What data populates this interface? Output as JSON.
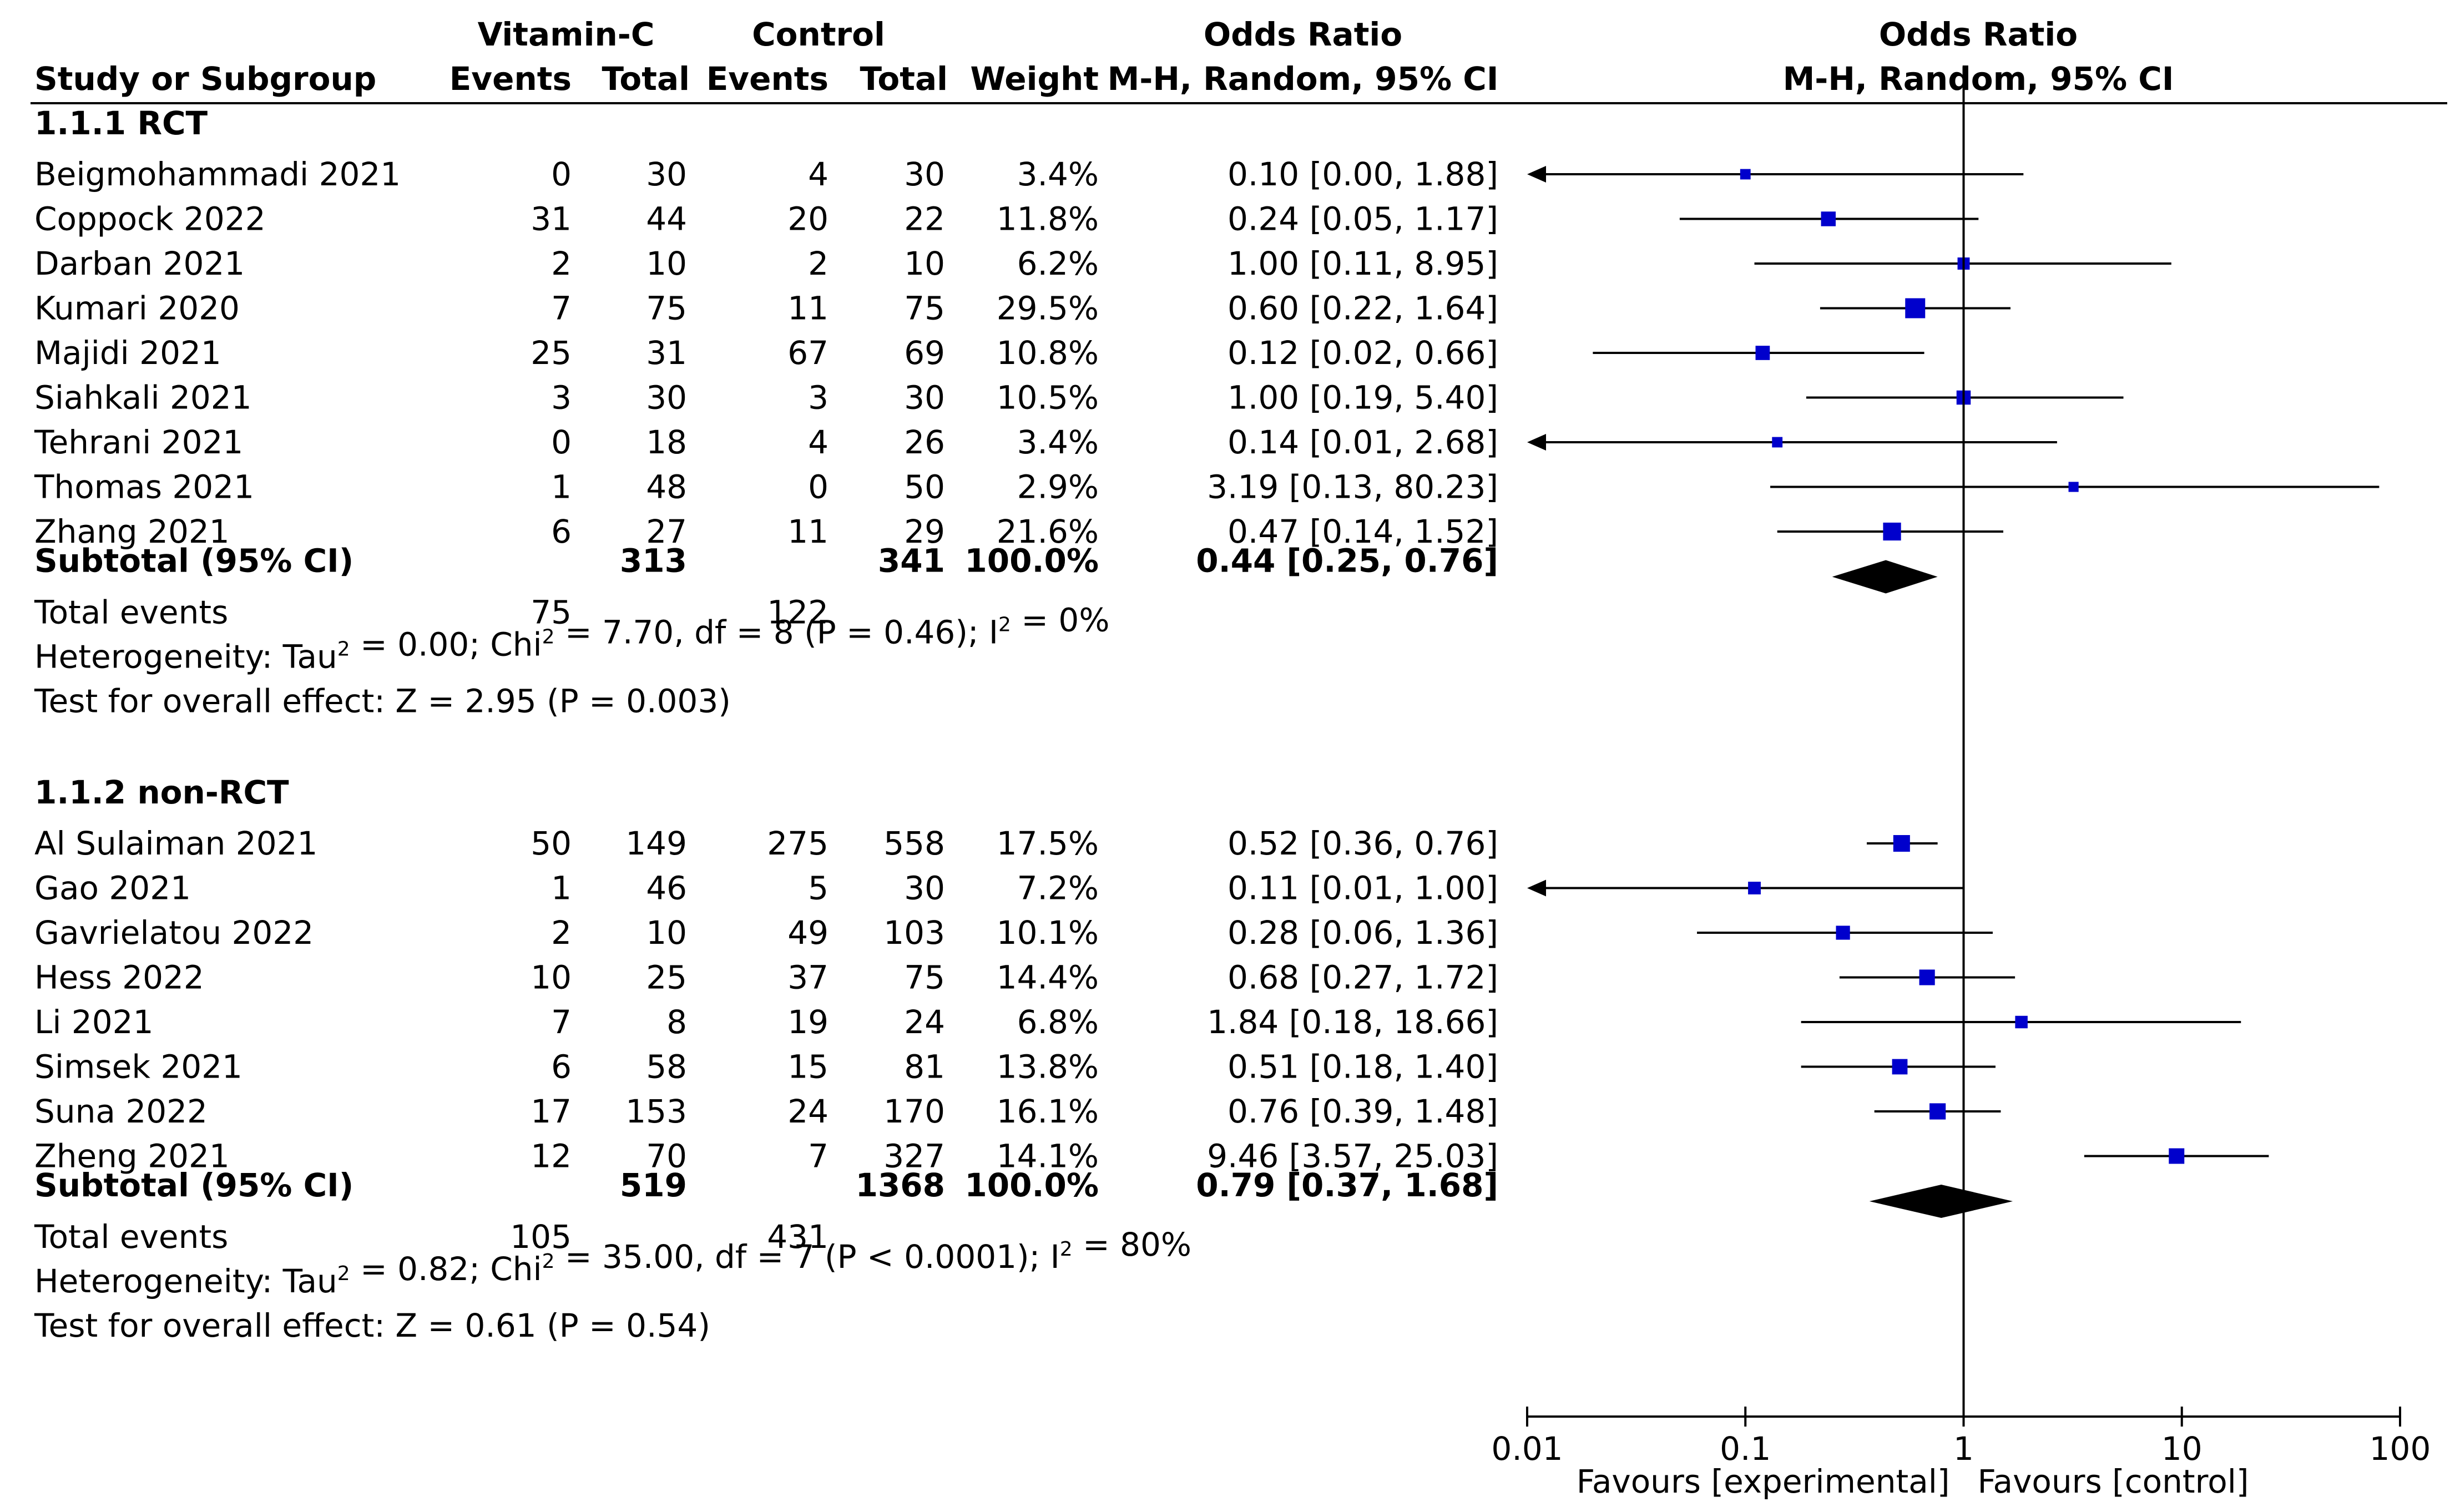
{
  "chart_data": {
    "type": "forest",
    "title": "Odds Ratio",
    "plot_header": [
      "Odds Ratio",
      "M-H, Random, 95% CI"
    ],
    "column_headers": {
      "study": "Study or Subgroup",
      "vitc_group": "Vitamin-C",
      "control_group": "Control",
      "events": "Events",
      "total": "Total",
      "weight": "Weight",
      "or_title": "Odds Ratio",
      "or_method": "M-H, Random, 95% CI"
    },
    "x_axis": {
      "scale": "log",
      "range": [
        0.01,
        100
      ],
      "ticks": [
        0.01,
        0.1,
        1,
        10,
        100
      ],
      "tick_labels": [
        "0.01",
        "0.1",
        "1",
        "10",
        "100"
      ],
      "left_label": "Favours [experimental]",
      "right_label": "Favours [control]"
    },
    "subgroups": [
      {
        "name": "1.1.1 RCT",
        "studies": [
          {
            "name": "Beigmohammadi 2021",
            "e1": "0",
            "t1": "30",
            "e2": "4",
            "t2": "30",
            "weight": "3.4%",
            "ci_text": "0.10 [0.00, 1.88]",
            "or": 0.1,
            "lo": 0.0,
            "hi": 1.88,
            "w": 3.4
          },
          {
            "name": "Coppock 2022",
            "e1": "31",
            "t1": "44",
            "e2": "20",
            "t2": "22",
            "weight": "11.8%",
            "ci_text": "0.24 [0.05, 1.17]",
            "or": 0.24,
            "lo": 0.05,
            "hi": 1.17,
            "w": 11.8
          },
          {
            "name": "Darban 2021",
            "e1": "2",
            "t1": "10",
            "e2": "2",
            "t2": "10",
            "weight": "6.2%",
            "ci_text": "1.00 [0.11, 8.95]",
            "or": 1.0,
            "lo": 0.11,
            "hi": 8.95,
            "w": 6.2
          },
          {
            "name": "Kumari 2020",
            "e1": "7",
            "t1": "75",
            "e2": "11",
            "t2": "75",
            "weight": "29.5%",
            "ci_text": "0.60 [0.22, 1.64]",
            "or": 0.6,
            "lo": 0.22,
            "hi": 1.64,
            "w": 29.5
          },
          {
            "name": "Majidi 2021",
            "e1": "25",
            "t1": "31",
            "e2": "67",
            "t2": "69",
            "weight": "10.8%",
            "ci_text": "0.12 [0.02, 0.66]",
            "or": 0.12,
            "lo": 0.02,
            "hi": 0.66,
            "w": 10.8
          },
          {
            "name": "Siahkali 2021",
            "e1": "3",
            "t1": "30",
            "e2": "3",
            "t2": "30",
            "weight": "10.5%",
            "ci_text": "1.00 [0.19, 5.40]",
            "or": 1.0,
            "lo": 0.19,
            "hi": 5.4,
            "w": 10.5
          },
          {
            "name": "Tehrani 2021",
            "e1": "0",
            "t1": "18",
            "e2": "4",
            "t2": "26",
            "weight": "3.4%",
            "ci_text": "0.14 [0.01, 2.68]",
            "or": 0.14,
            "lo": 0.01,
            "hi": 2.68,
            "w": 3.4
          },
          {
            "name": "Thomas 2021",
            "e1": "1",
            "t1": "48",
            "e2": "0",
            "t2": "50",
            "weight": "2.9%",
            "ci_text": "3.19 [0.13, 80.23]",
            "or": 3.19,
            "lo": 0.13,
            "hi": 80.23,
            "w": 2.9
          },
          {
            "name": "Zhang 2021",
            "e1": "6",
            "t1": "27",
            "e2": "11",
            "t2": "29",
            "weight": "21.6%",
            "ci_text": "0.47 [0.14, 1.52]",
            "or": 0.47,
            "lo": 0.14,
            "hi": 1.52,
            "w": 21.6
          }
        ],
        "subtotal": {
          "label": "Subtotal (95% CI)",
          "t1": "313",
          "t2": "341",
          "weight": "100.0%",
          "ci_text": "0.44 [0.25, 0.76]",
          "or": 0.44,
          "lo": 0.25,
          "hi": 0.76
        },
        "total_events_label": "Total events",
        "total_events": {
          "e1": "75",
          "e2": "122"
        },
        "heterogeneity": {
          "a": "Heterogeneity: Tau",
          "b": " = 0.00; Chi",
          "c": " = 7.70, df = 8 (P = 0.46); I",
          "d": " = 0%"
        },
        "overall": "Test for overall effect: Z = 2.95 (P = 0.003)"
      },
      {
        "name": "1.1.2 non-RCT",
        "studies": [
          {
            "name": "Al Sulaiman 2021",
            "e1": "50",
            "t1": "149",
            "e2": "275",
            "t2": "558",
            "weight": "17.5%",
            "ci_text": "0.52 [0.36, 0.76]",
            "or": 0.52,
            "lo": 0.36,
            "hi": 0.76,
            "w": 17.5
          },
          {
            "name": "Gao 2021",
            "e1": "1",
            "t1": "46",
            "e2": "5",
            "t2": "30",
            "weight": "7.2%",
            "ci_text": "0.11 [0.01, 1.00]",
            "or": 0.11,
            "lo": 0.01,
            "hi": 1.0,
            "w": 7.2
          },
          {
            "name": "Gavrielatou 2022",
            "e1": "2",
            "t1": "10",
            "e2": "49",
            "t2": "103",
            "weight": "10.1%",
            "ci_text": "0.28 [0.06, 1.36]",
            "or": 0.28,
            "lo": 0.06,
            "hi": 1.36,
            "w": 10.1
          },
          {
            "name": "Hess 2022",
            "e1": "10",
            "t1": "25",
            "e2": "37",
            "t2": "75",
            "weight": "14.4%",
            "ci_text": "0.68 [0.27, 1.72]",
            "or": 0.68,
            "lo": 0.27,
            "hi": 1.72,
            "w": 14.4
          },
          {
            "name": "Li 2021",
            "e1": "7",
            "t1": "8",
            "e2": "19",
            "t2": "24",
            "weight": "6.8%",
            "ci_text": "1.84 [0.18, 18.66]",
            "or": 1.84,
            "lo": 0.18,
            "hi": 18.66,
            "w": 6.8
          },
          {
            "name": "Simsek 2021",
            "e1": "6",
            "t1": "58",
            "e2": "15",
            "t2": "81",
            "weight": "13.8%",
            "ci_text": "0.51 [0.18, 1.40]",
            "or": 0.51,
            "lo": 0.18,
            "hi": 1.4,
            "w": 13.8
          },
          {
            "name": "Suna 2022",
            "e1": "17",
            "t1": "153",
            "e2": "24",
            "t2": "170",
            "weight": "16.1%",
            "ci_text": "0.76 [0.39, 1.48]",
            "or": 0.76,
            "lo": 0.39,
            "hi": 1.48,
            "w": 16.1
          },
          {
            "name": "Zheng 2021",
            "e1": "12",
            "t1": "70",
            "e2": "7",
            "t2": "327",
            "weight": "14.1%",
            "ci_text": "9.46 [3.57, 25.03]",
            "or": 9.46,
            "lo": 3.57,
            "hi": 25.03,
            "w": 14.1
          }
        ],
        "subtotal": {
          "label": "Subtotal (95% CI)",
          "t1": "519",
          "t2": "1368",
          "weight": "100.0%",
          "ci_text": "0.79 [0.37, 1.68]",
          "or": 0.79,
          "lo": 0.37,
          "hi": 1.68
        },
        "total_events_label": "Total events",
        "total_events": {
          "e1": "105",
          "e2": "431"
        },
        "heterogeneity": {
          "a": "Heterogeneity: Tau",
          "b": " = 0.82; Chi",
          "c": " = 35.00, df = 7 (P < 0.0001); I",
          "d": " = 80%"
        },
        "overall": "Test for overall effect: Z = 0.61 (P = 0.54)"
      }
    ],
    "colors": {
      "marker": "#0000cc",
      "ink": "#000000",
      "diamond": "#000000"
    }
  }
}
